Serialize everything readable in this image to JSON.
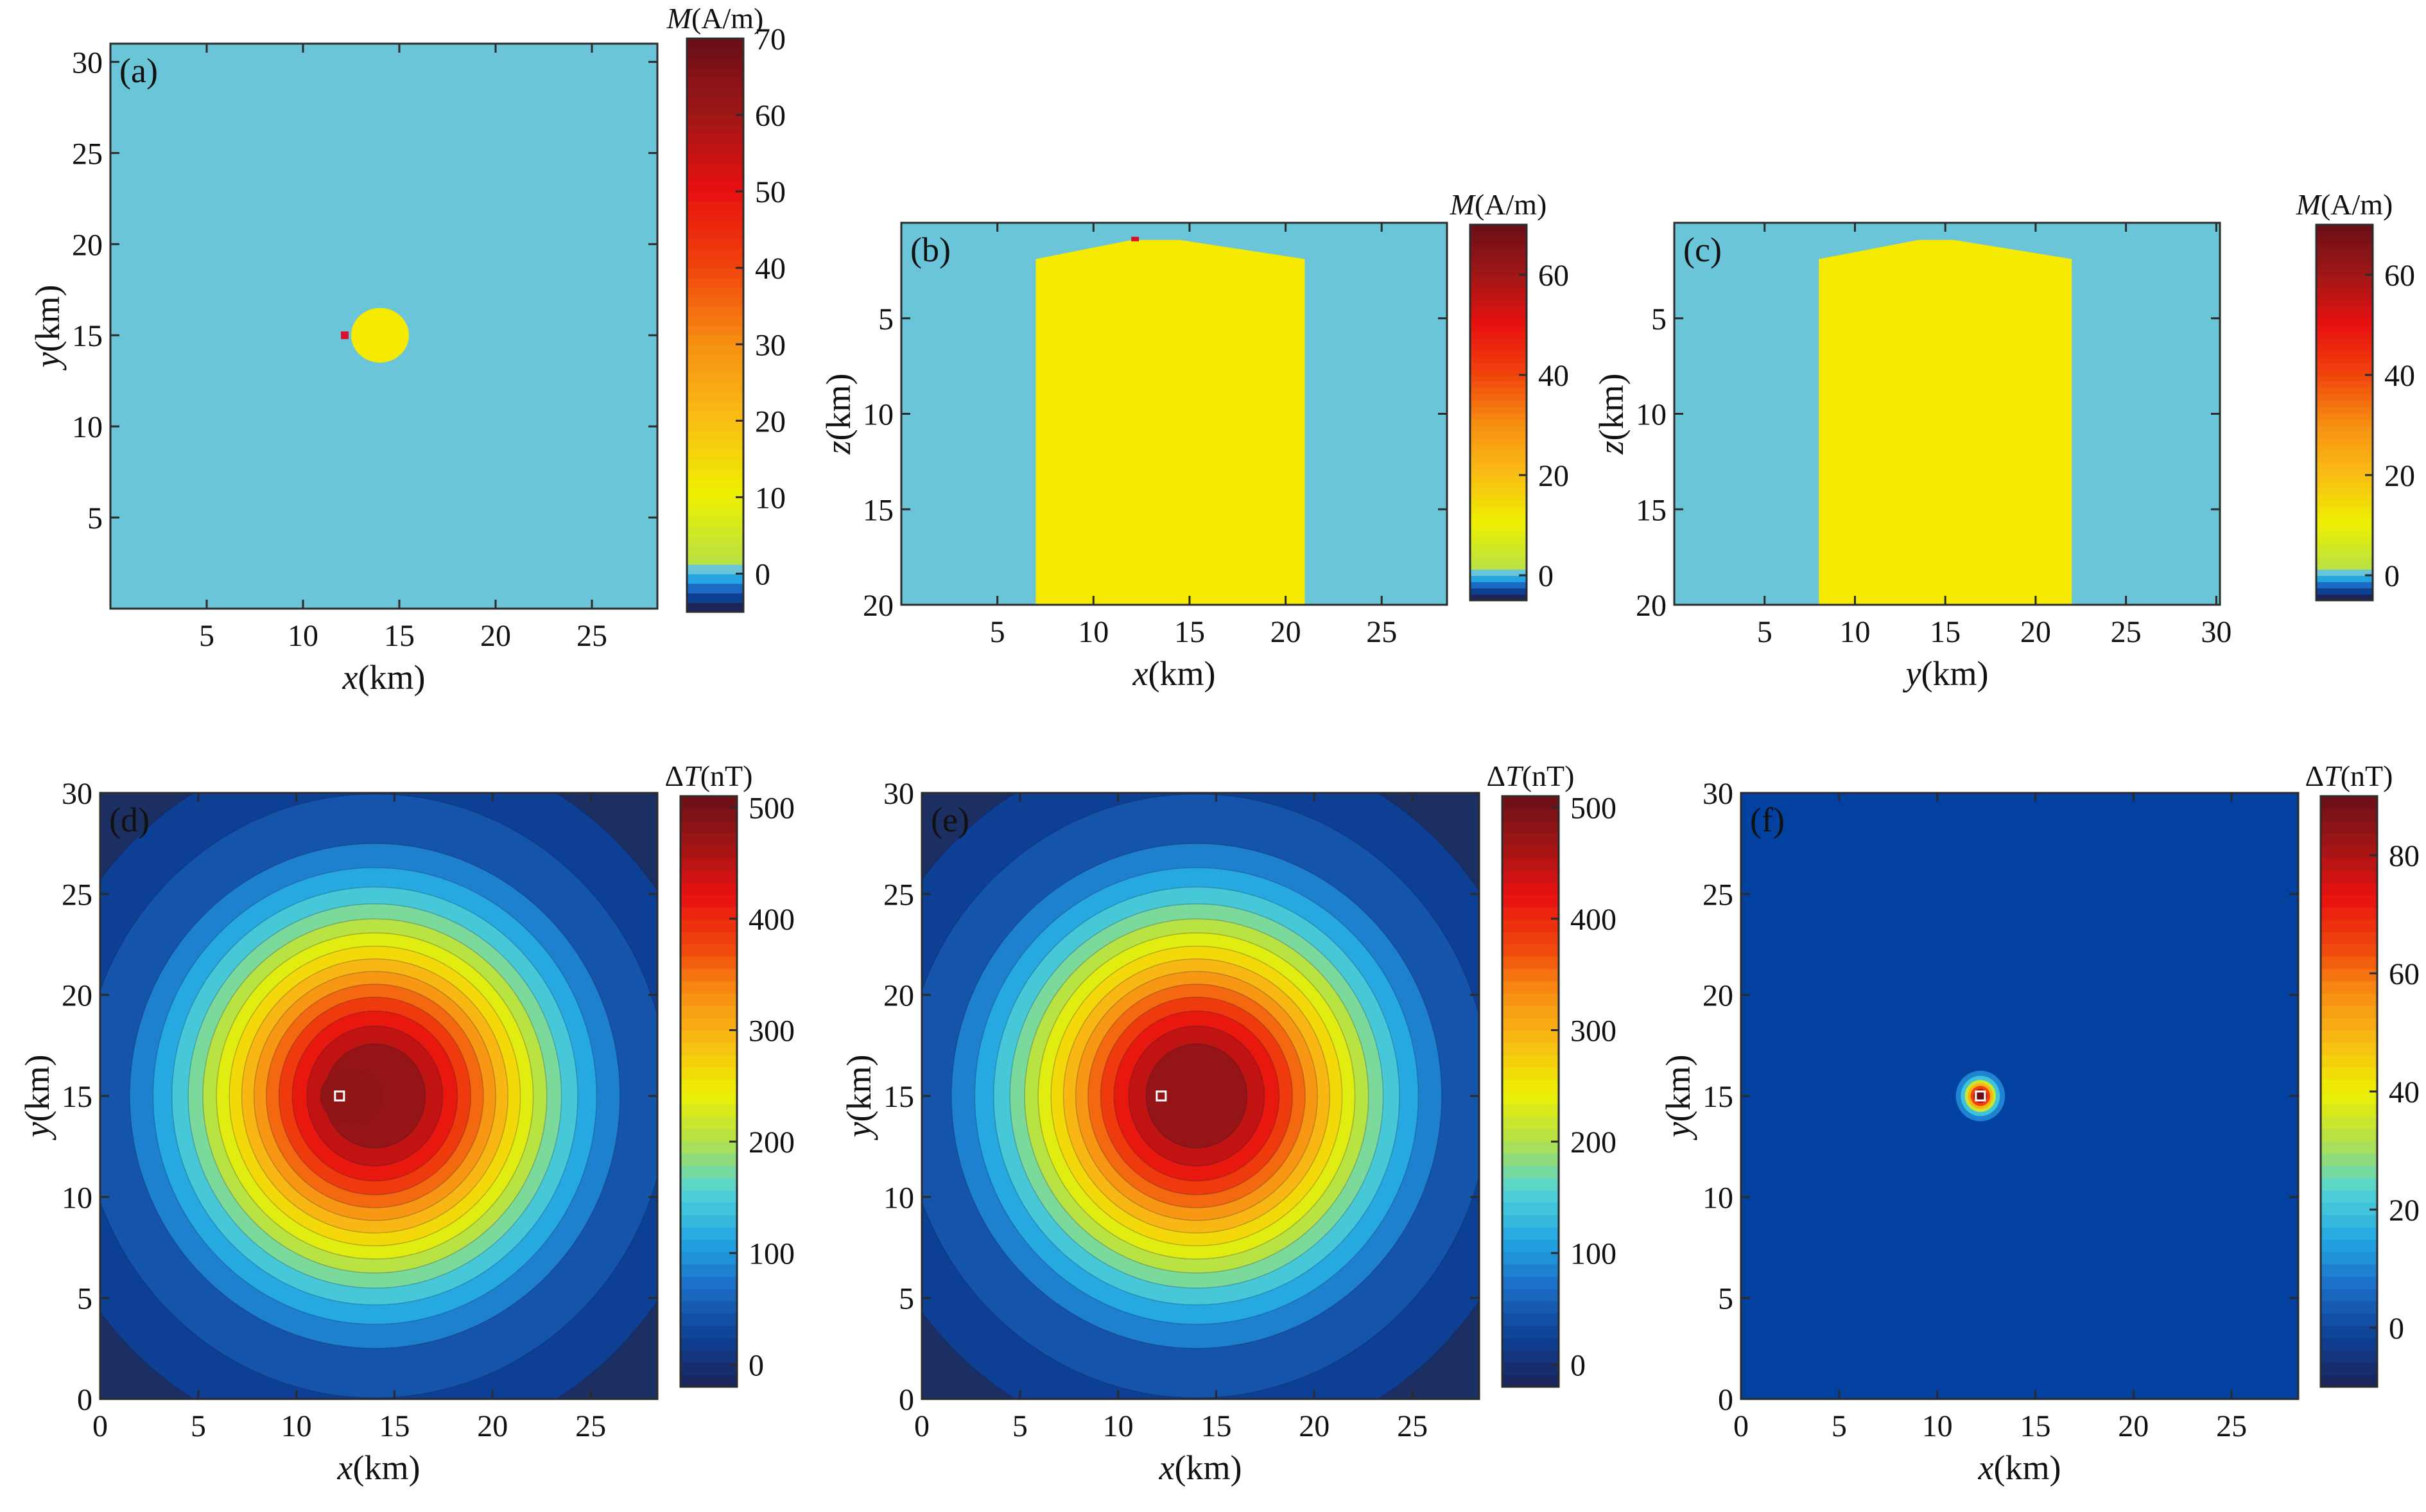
{
  "colors": {
    "background_model": "#6ac5d9",
    "body": "#f5ea00",
    "anomaly_background": "#1c2f62",
    "anomaly_background_f": "#02419f"
  },
  "colormap_stops": [
    "#1c2458",
    "#0d3f93",
    "#1b6bc4",
    "#23a6e2",
    "#52d4d6",
    "#b4e04a",
    "#eef000",
    "#f9bd14",
    "#f78e13",
    "#f0430c",
    "#e81010",
    "#a01616",
    "#6a0f17"
  ],
  "chart_data": [
    {
      "panel": "(a)",
      "type": "heatmap",
      "xlabel": "x(km)",
      "ylabel": "y(km)",
      "xlim": [
        0,
        28.4
      ],
      "ylim": [
        0,
        31
      ],
      "x_ticks": [
        "5",
        "10",
        "15",
        "20",
        "25"
      ],
      "y_ticks": [
        "5",
        "10",
        "15",
        "20",
        "25",
        "30"
      ],
      "colorbar": {
        "title": "M(A/m)",
        "min": -5,
        "max": 70,
        "ticks": [
          "0",
          "10",
          "20",
          "30",
          "40",
          "50",
          "60",
          "70"
        ]
      },
      "background_value": 0,
      "body": {
        "shape": "circle",
        "center": [
          14,
          15
        ],
        "radius": 1.5,
        "value": 8
      },
      "marker": {
        "x": 12.2,
        "y": 15,
        "color": "#d9112b"
      }
    },
    {
      "panel": "(b)",
      "type": "heatmap",
      "xlabel": "x(km)",
      "ylabel": "z(km)",
      "xlim": [
        0,
        28.4
      ],
      "zlim": [
        0,
        20
      ],
      "x_ticks": [
        "5",
        "10",
        "15",
        "20",
        "25"
      ],
      "z_ticks": [
        "5",
        "10",
        "15",
        "20"
      ],
      "colorbar": {
        "title": "M(A/m)",
        "min": -5,
        "max": 70,
        "ticks": [
          "0",
          "20",
          "40",
          "60"
        ]
      },
      "body": {
        "outline": [
          [
            7,
            20
          ],
          [
            7,
            1.9
          ],
          [
            12,
            0.9
          ],
          [
            14.5,
            0.9
          ],
          [
            21,
            1.9
          ],
          [
            21,
            20
          ]
        ],
        "value": 8
      },
      "marker": {
        "x": 12.2,
        "z": 0.9,
        "color": "#d9112b"
      }
    },
    {
      "panel": "(c)",
      "type": "heatmap",
      "xlabel": "y(km)",
      "ylabel": "z(km)",
      "xlim": [
        0,
        30.2
      ],
      "zlim": [
        0,
        20
      ],
      "x_ticks": [
        "5",
        "10",
        "15",
        "20",
        "25",
        "30"
      ],
      "z_ticks": [
        "5",
        "10",
        "15",
        "20"
      ],
      "colorbar": {
        "title": "M(A/m)",
        "min": -5,
        "max": 70,
        "ticks": [
          "0",
          "20",
          "40",
          "60"
        ]
      },
      "body": {
        "outline": [
          [
            8,
            20
          ],
          [
            8,
            1.9
          ],
          [
            13.5,
            0.9
          ],
          [
            15.5,
            0.9
          ],
          [
            22,
            1.9
          ],
          [
            22,
            20
          ]
        ],
        "value": 8
      }
    },
    {
      "panel": "(d)",
      "type": "heatmap",
      "xlabel": "x(km)",
      "ylabel": "y(km)",
      "xlim": [
        0,
        28.4
      ],
      "ylim": [
        0,
        30
      ],
      "x_ticks": [
        "0",
        "5",
        "10",
        "15",
        "20",
        "25"
      ],
      "y_ticks": [
        "0",
        "5",
        "10",
        "15",
        "20",
        "25",
        "30"
      ],
      "colorbar": {
        "title": "ΔT(nT)",
        "min": -20,
        "max": 510,
        "ticks": [
          "0",
          "100",
          "200",
          "300",
          "400",
          "500"
        ]
      },
      "source": {
        "x": 14,
        "y": 15,
        "peak": 500,
        "width_km": 6.3
      },
      "secondary_source": {
        "x": 12.2,
        "y": 15,
        "amplitude": 120,
        "width_km": 1.2
      },
      "marker": {
        "x": 12.2,
        "y": 15
      },
      "contour_values": [
        10,
        30,
        70,
        100,
        130,
        160,
        190,
        220,
        250,
        280,
        310,
        340,
        370,
        400,
        430,
        460
      ]
    },
    {
      "panel": "(e)",
      "type": "heatmap",
      "xlabel": "x(km)",
      "ylabel": "y(km)",
      "xlim": [
        0,
        28.4
      ],
      "ylim": [
        0,
        30
      ],
      "x_ticks": [
        "0",
        "5",
        "10",
        "15",
        "20",
        "25"
      ],
      "y_ticks": [
        "0",
        "5",
        "10",
        "15",
        "20",
        "25",
        "30"
      ],
      "colorbar": {
        "title": "ΔT(nT)",
        "min": -20,
        "max": 510,
        "ticks": [
          "0",
          "100",
          "200",
          "300",
          "400",
          "500"
        ]
      },
      "source": {
        "x": 14,
        "y": 15,
        "peak": 500,
        "width_km": 6.3
      },
      "marker": {
        "x": 12.2,
        "y": 15
      },
      "contour_values": [
        10,
        30,
        70,
        100,
        130,
        160,
        190,
        220,
        250,
        280,
        310,
        340,
        370,
        400,
        430,
        460
      ]
    },
    {
      "panel": "(f)",
      "type": "heatmap",
      "xlabel": "x(km)",
      "ylabel": "y(km)",
      "xlim": [
        0,
        28.4
      ],
      "ylim": [
        0,
        30
      ],
      "x_ticks": [
        "0",
        "5",
        "10",
        "15",
        "20",
        "25"
      ],
      "y_ticks": [
        "0",
        "5",
        "10",
        "15",
        "20",
        "25",
        "30"
      ],
      "colorbar": {
        "title": "ΔT(nT)",
        "min": -10,
        "max": 90,
        "ticks": [
          "0",
          "20",
          "40",
          "60",
          "80"
        ]
      },
      "source": {
        "x": 12.2,
        "y": 15,
        "peak": 90,
        "width_km": 0.5
      },
      "marker": {
        "x": 12.2,
        "y": 15
      }
    }
  ]
}
